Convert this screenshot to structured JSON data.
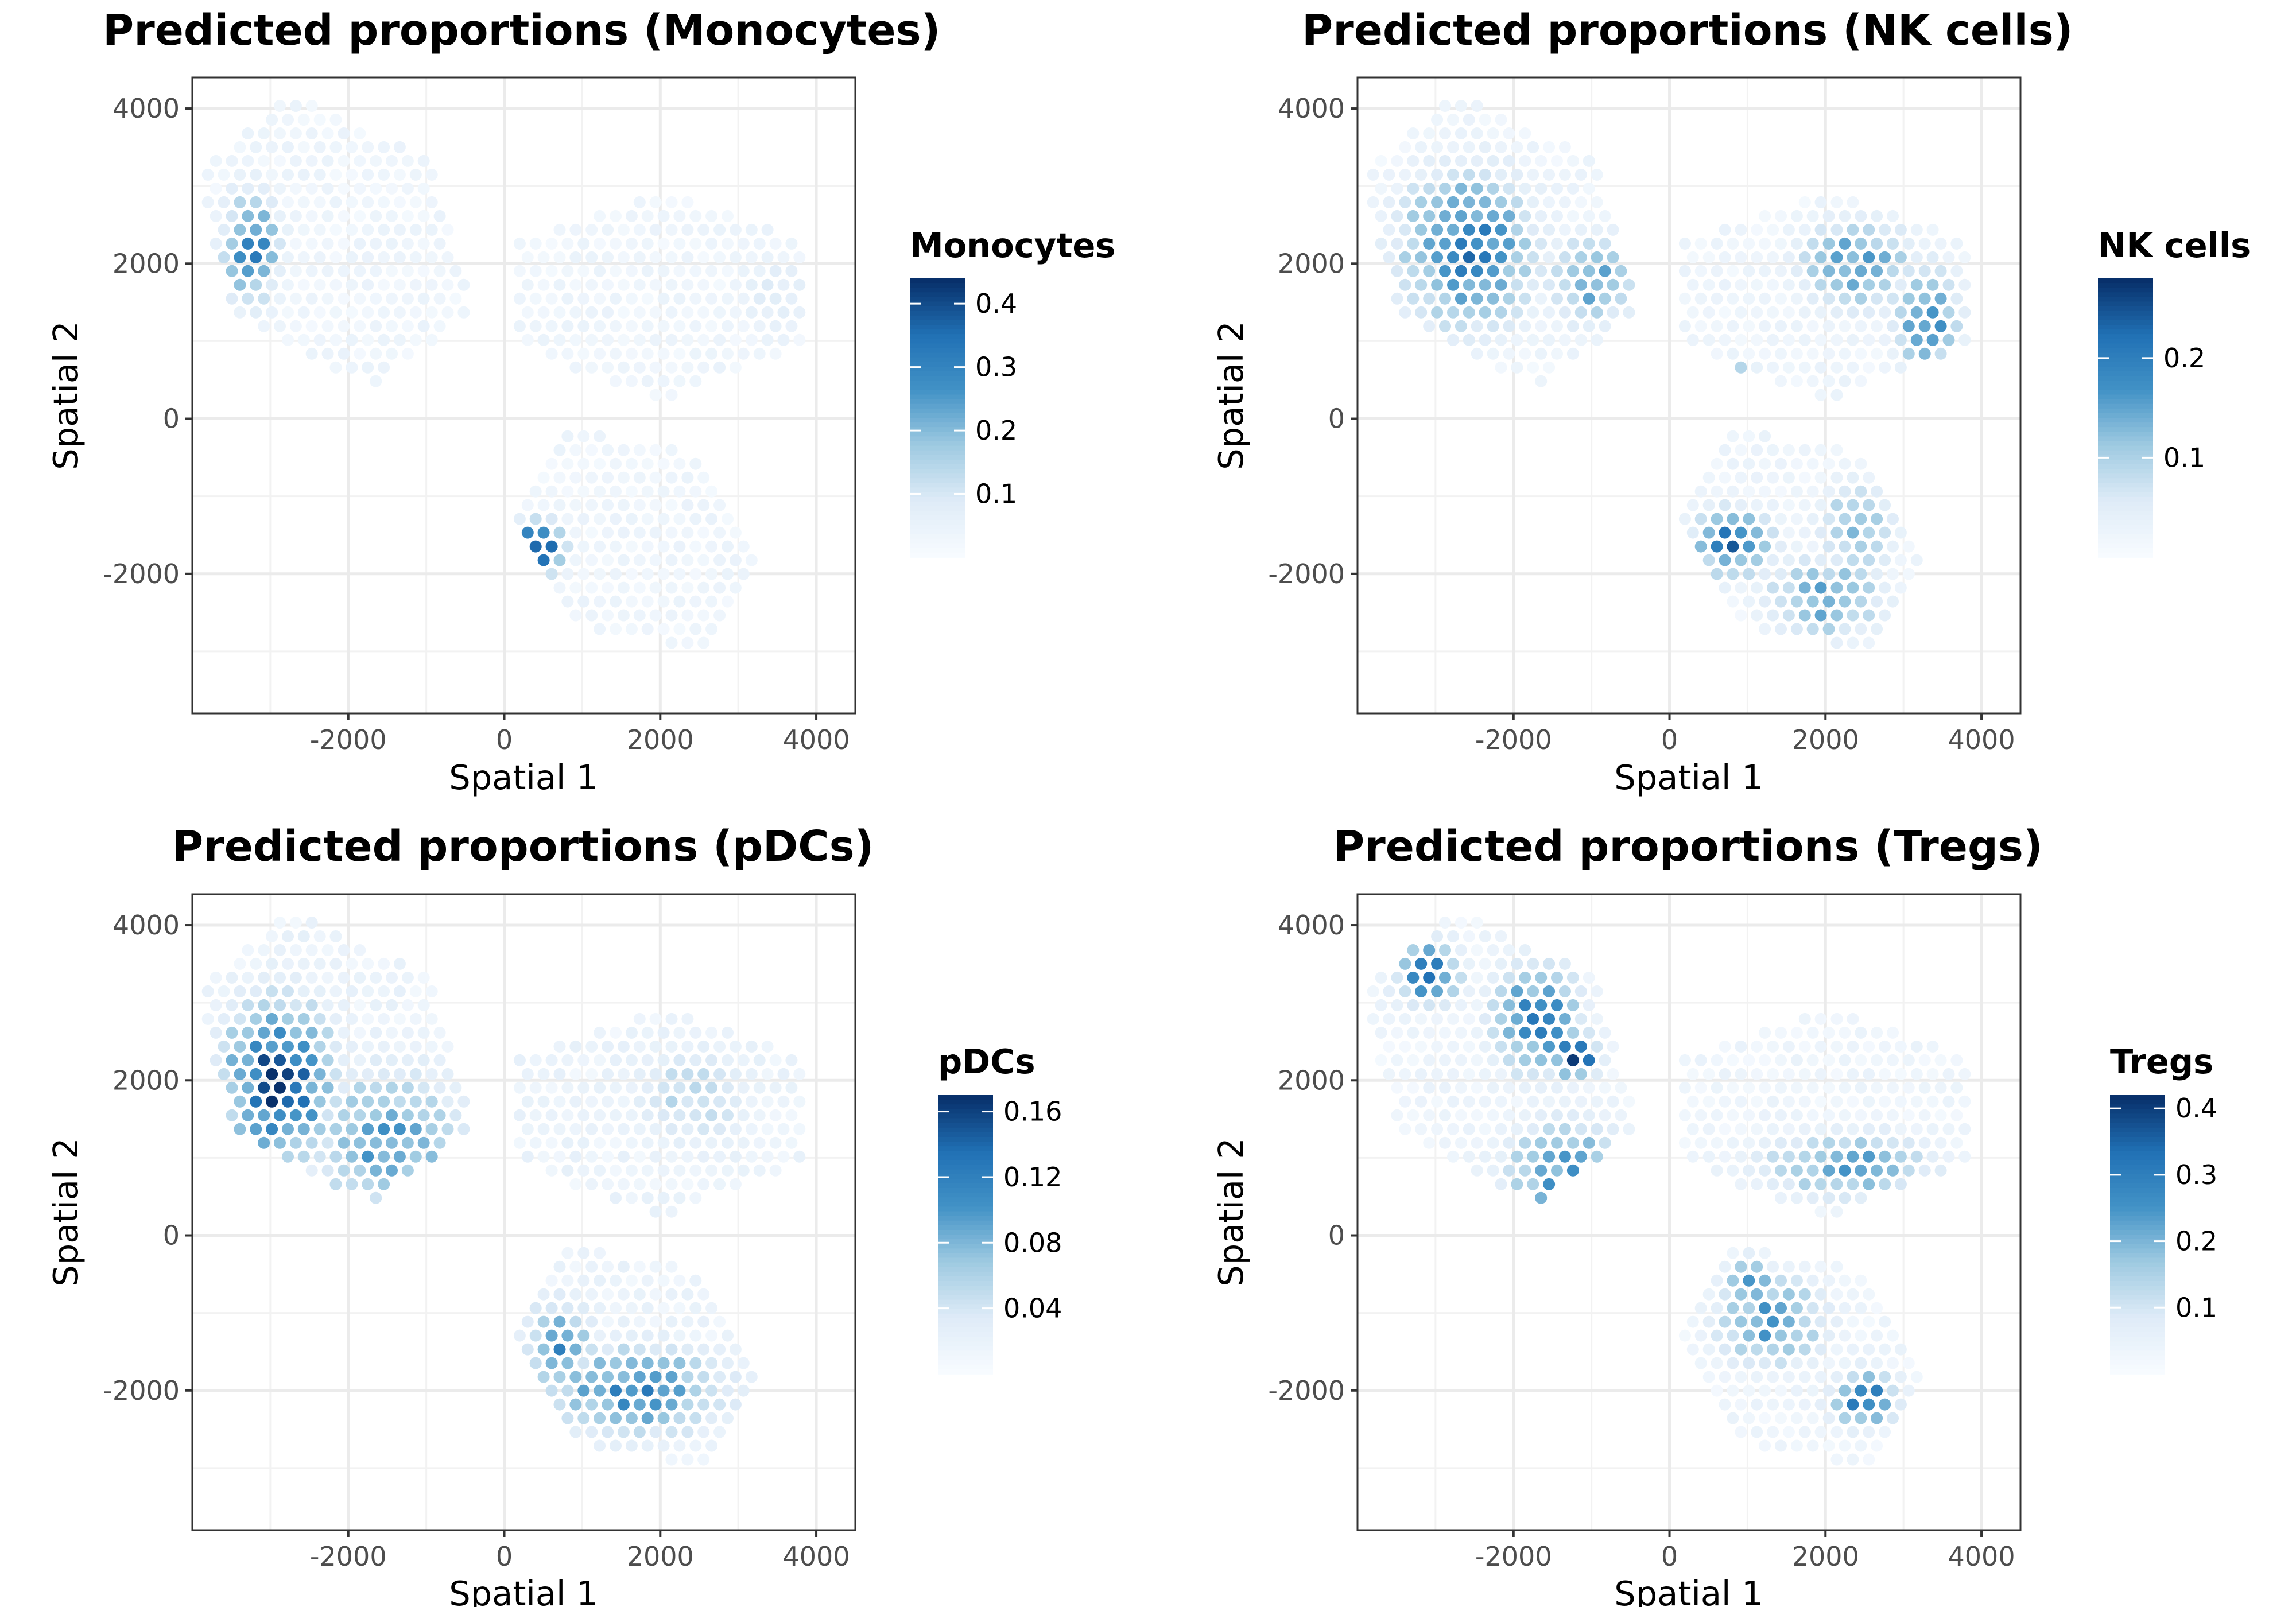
{
  "chart_data": [
    {
      "type": "scatter",
      "title": "Predicted proportions (Monocytes)",
      "xlabel": "Spatial 1",
      "ylabel": "Spatial 2",
      "xlim": [
        -4000,
        4500
      ],
      "ylim": [
        -3800,
        4400
      ],
      "xticks": [
        -2000,
        0,
        2000,
        4000
      ],
      "xtick_labels": [
        "-2000",
        "0",
        "2000",
        "4000"
      ],
      "yticks": [
        4000,
        2000,
        0,
        -2000
      ],
      "ytick_labels": [
        "4000",
        "2000",
        "0",
        "-2000"
      ],
      "grid": true,
      "legend_position": "right",
      "color_scale": {
        "title": "Monocytes",
        "palette": "Blues",
        "low": "#f7fbff",
        "high": "#08306b",
        "min": 0.0,
        "max": 0.44,
        "breaks": [
          0.4,
          0.3,
          0.2,
          0.1
        ],
        "break_labels": [
          "0.4",
          "0.3",
          "0.2",
          "0.1"
        ]
      },
      "hotspots": [
        {
          "x": -3250,
          "y": 2200,
          "sx": 250,
          "sy": 500,
          "value": 0.3
        },
        {
          "x": 400,
          "y": -1700,
          "sx": 250,
          "sy": 250,
          "value": 0.42
        },
        {
          "x": 3500,
          "y": 1600,
          "sx": 400,
          "sy": 400,
          "value": 0.08
        }
      ],
      "background_level": 0.03
    },
    {
      "type": "scatter",
      "title": "Predicted proportions (NK cells)",
      "xlabel": "Spatial 1",
      "ylabel": "Spatial 2",
      "xlim": [
        -4000,
        4500
      ],
      "ylim": [
        -3800,
        4400
      ],
      "xticks": [
        -2000,
        0,
        2000,
        4000
      ],
      "xtick_labels": [
        "-2000",
        "0",
        "2000",
        "4000"
      ],
      "yticks": [
        4000,
        2000,
        0,
        -2000
      ],
      "ytick_labels": [
        "4000",
        "2000",
        "0",
        "-2000"
      ],
      "grid": true,
      "legend_position": "right",
      "color_scale": {
        "title": "NK cells",
        "palette": "Blues",
        "low": "#f7fbff",
        "high": "#08306b",
        "min": 0.0,
        "max": 0.28,
        "breaks": [
          0.2,
          0.1
        ],
        "break_labels": [
          "0.2",
          "0.1"
        ]
      },
      "hotspots": [
        {
          "x": -2600,
          "y": 2200,
          "sx": 600,
          "sy": 700,
          "value": 0.2
        },
        {
          "x": -1000,
          "y": 1800,
          "sx": 400,
          "sy": 400,
          "value": 0.15
        },
        {
          "x": 800,
          "y": 450,
          "sx": 180,
          "sy": 180,
          "value": 0.27
        },
        {
          "x": 2400,
          "y": 2000,
          "sx": 500,
          "sy": 400,
          "value": 0.16
        },
        {
          "x": 3300,
          "y": 1300,
          "sx": 300,
          "sy": 500,
          "value": 0.17
        },
        {
          "x": 800,
          "y": -1600,
          "sx": 350,
          "sy": 300,
          "value": 0.2
        },
        {
          "x": 2000,
          "y": -2300,
          "sx": 500,
          "sy": 350,
          "value": 0.16
        },
        {
          "x": 2400,
          "y": -1400,
          "sx": 350,
          "sy": 400,
          "value": 0.13
        }
      ],
      "background_level": 0.02
    },
    {
      "type": "scatter",
      "title": "Predicted proportions (pDCs)",
      "xlabel": "Spatial 1",
      "ylabel": "Spatial 2",
      "xlim": [
        -4000,
        4500
      ],
      "ylim": [
        -3800,
        4400
      ],
      "xticks": [
        -2000,
        0,
        2000,
        4000
      ],
      "xtick_labels": [
        "-2000",
        "0",
        "2000",
        "4000"
      ],
      "yticks": [
        4000,
        2000,
        0,
        -2000
      ],
      "ytick_labels": [
        "4000",
        "2000",
        "0",
        "-2000"
      ],
      "grid": true,
      "legend_position": "right",
      "color_scale": {
        "title": "pDCs",
        "palette": "Blues",
        "low": "#f7fbff",
        "high": "#08306b",
        "min": 0.0,
        "max": 0.17,
        "breaks": [
          0.16,
          0.12,
          0.08,
          0.04
        ],
        "break_labels": [
          "0.16",
          "0.12",
          "0.08",
          "0.04"
        ]
      },
      "hotspots": [
        {
          "x": -2900,
          "y": 2000,
          "sx": 500,
          "sy": 700,
          "value": 0.15
        },
        {
          "x": -1500,
          "y": 1200,
          "sx": 700,
          "sy": 700,
          "value": 0.09
        },
        {
          "x": -900,
          "y": 600,
          "sx": 300,
          "sy": 300,
          "value": 0.1
        },
        {
          "x": 1700,
          "y": -2000,
          "sx": 800,
          "sy": 400,
          "value": 0.11
        },
        {
          "x": 700,
          "y": -1400,
          "sx": 300,
          "sy": 400,
          "value": 0.1
        },
        {
          "x": 2400,
          "y": 1800,
          "sx": 600,
          "sy": 500,
          "value": 0.05
        }
      ],
      "background_level": 0.015
    },
    {
      "type": "scatter",
      "title": "Predicted proportions (Tregs)",
      "xlabel": "Spatial 1",
      "ylabel": "Spatial 2",
      "xlim": [
        -4000,
        4500
      ],
      "ylim": [
        -3800,
        4400
      ],
      "xticks": [
        -2000,
        0,
        2000,
        4000
      ],
      "xtick_labels": [
        "-2000",
        "0",
        "2000",
        "4000"
      ],
      "yticks": [
        4000,
        2000,
        0,
        -2000
      ],
      "ytick_labels": [
        "4000",
        "2000",
        "0",
        "-2000"
      ],
      "grid": true,
      "legend_position": "right",
      "color_scale": {
        "title": "Tregs",
        "palette": "Blues",
        "low": "#f7fbff",
        "high": "#08306b",
        "min": 0.0,
        "max": 0.42,
        "breaks": [
          0.4,
          0.3,
          0.2,
          0.1
        ],
        "break_labels": [
          "0.4",
          "0.3",
          "0.2",
          "0.1"
        ]
      },
      "hotspots": [
        {
          "x": -3100,
          "y": 3400,
          "sx": 300,
          "sy": 300,
          "value": 0.3
        },
        {
          "x": -1700,
          "y": 2800,
          "sx": 400,
          "sy": 500,
          "value": 0.28
        },
        {
          "x": -1200,
          "y": 2300,
          "sx": 200,
          "sy": 200,
          "value": 0.4
        },
        {
          "x": -1300,
          "y": 800,
          "sx": 600,
          "sy": 500,
          "value": 0.24
        },
        {
          "x": 2300,
          "y": 900,
          "sx": 800,
          "sy": 300,
          "value": 0.22
        },
        {
          "x": 1300,
          "y": -1100,
          "sx": 500,
          "sy": 400,
          "value": 0.24
        },
        {
          "x": 1000,
          "y": -600,
          "sx": 200,
          "sy": 200,
          "value": 0.32
        },
        {
          "x": 2500,
          "y": -2100,
          "sx": 300,
          "sy": 250,
          "value": 0.3
        }
      ],
      "background_level": 0.03
    }
  ],
  "tissue_sections": [
    {
      "name": "upper-left",
      "center": [
        -2200,
        2300
      ],
      "radius": 1600,
      "angle": -50,
      "stretch": 1.3
    },
    {
      "name": "upper-right",
      "center": [
        2000,
        1600
      ],
      "radius": 1350,
      "angle": 0,
      "stretch": 1.55
    },
    {
      "name": "lower",
      "center": [
        1700,
        -1550
      ],
      "radius": 1350,
      "angle": -35,
      "stretch": 1.3
    }
  ]
}
